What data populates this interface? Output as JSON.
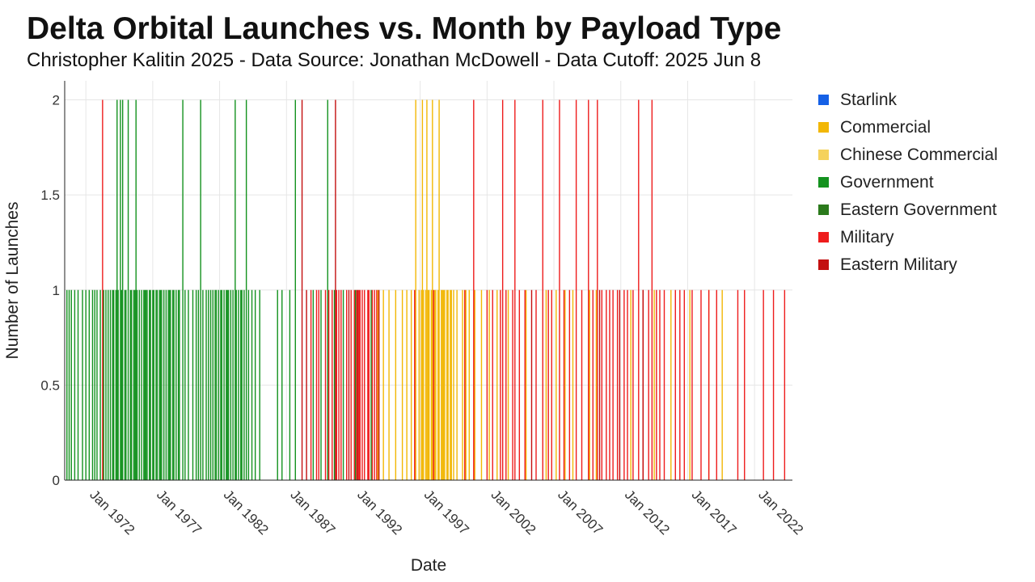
{
  "chart_data": {
    "type": "bar",
    "title": "Delta Orbital Launches vs. Month by Payload Type",
    "subtitle": "Christopher Kalitin 2025 - Data Source: Jonathan McDowell - Data Cutoff: 2025 Jun 8",
    "xlabel": "Date",
    "ylabel": "Number of Launches",
    "x_axis_type": "date",
    "xlim": [
      "1970-06",
      "2024-11"
    ],
    "ylim": [
      0,
      2.1
    ],
    "y_ticks": [
      0,
      0.5,
      1,
      1.5,
      2
    ],
    "y_tick_labels": [
      "0",
      "0.5",
      "1",
      "1.5",
      "2"
    ],
    "x_ticks": [
      "1972-01",
      "1977-01",
      "1982-01",
      "1987-01",
      "1992-01",
      "1997-01",
      "2002-01",
      "2007-01",
      "2012-01",
      "2017-01",
      "2022-01"
    ],
    "x_tick_labels": [
      "Jan 1972",
      "Jan 1977",
      "Jan 1982",
      "Jan 1987",
      "Jan 1992",
      "Jan 1997",
      "Jan 2002",
      "Jan 2007",
      "Jan 2012",
      "Jan 2017",
      "Jan 2022"
    ],
    "grid": true,
    "legend_position": "right",
    "series": [
      {
        "name": "Starlink",
        "color": "#1560e6",
        "points": []
      },
      {
        "name": "Commercial",
        "color": "#f2b705",
        "points": [
          [
            "1993-11",
            1
          ],
          [
            "1994-04",
            1
          ],
          [
            "1994-09",
            1
          ],
          [
            "1995-03",
            1
          ],
          [
            "1995-09",
            1
          ],
          [
            "1996-01",
            1
          ],
          [
            "1996-05",
            1
          ],
          [
            "1996-09",
            2
          ],
          [
            "1996-12",
            1
          ],
          [
            "1997-02",
            1
          ],
          [
            "1997-03",
            2
          ],
          [
            "1997-04",
            1
          ],
          [
            "1997-06",
            1
          ],
          [
            "1997-07",
            2
          ],
          [
            "1997-08",
            1
          ],
          [
            "1997-09",
            1
          ],
          [
            "1997-11",
            1
          ],
          [
            "1997-12",
            2
          ],
          [
            "1998-02",
            1
          ],
          [
            "1998-03",
            1
          ],
          [
            "1998-05",
            1
          ],
          [
            "1998-06",
            2
          ],
          [
            "1998-08",
            1
          ],
          [
            "1998-09",
            1
          ],
          [
            "1998-10",
            1
          ],
          [
            "1998-11",
            1
          ],
          [
            "1999-01",
            1
          ],
          [
            "1999-02",
            1
          ],
          [
            "1999-04",
            1
          ],
          [
            "1999-05",
            1
          ],
          [
            "1999-07",
            1
          ],
          [
            "1999-10",
            1
          ],
          [
            "2000-03",
            1
          ],
          [
            "2000-06",
            1
          ],
          [
            "2000-09",
            1
          ],
          [
            "2001-02",
            1
          ],
          [
            "2001-08",
            1
          ],
          [
            "2002-03",
            1
          ],
          [
            "2002-10",
            1
          ],
          [
            "2003-08",
            1
          ],
          [
            "2004-12",
            1
          ],
          [
            "2006-06",
            1
          ],
          [
            "2007-03",
            1
          ],
          [
            "2007-11",
            1
          ],
          [
            "2008-06",
            1
          ],
          [
            "2009-09",
            1
          ],
          [
            "2010-03",
            1
          ],
          [
            "2012-10",
            1
          ],
          [
            "2014-07",
            1
          ],
          [
            "2015-10",
            1
          ],
          [
            "2017-03",
            1
          ],
          [
            "2018-08",
            1
          ],
          [
            "2019-08",
            1
          ]
        ]
      },
      {
        "name": "Chinese Commercial",
        "color": "#f5d25c",
        "points": []
      },
      {
        "name": "Government",
        "color": "#14921f",
        "points": [
          [
            "1970-08",
            1
          ],
          [
            "1970-10",
            1
          ],
          [
            "1970-12",
            1
          ],
          [
            "1971-03",
            1
          ],
          [
            "1971-06",
            1
          ],
          [
            "1971-10",
            1
          ],
          [
            "1972-01",
            1
          ],
          [
            "1972-04",
            1
          ],
          [
            "1972-07",
            1
          ],
          [
            "1972-09",
            1
          ],
          [
            "1972-11",
            1
          ],
          [
            "1973-02",
            1
          ],
          [
            "1973-05",
            1
          ],
          [
            "1973-07",
            1
          ],
          [
            "1973-09",
            1
          ],
          [
            "1973-11",
            1
          ],
          [
            "1974-01",
            1
          ],
          [
            "1974-02",
            1
          ],
          [
            "1974-04",
            1
          ],
          [
            "1974-05",
            2
          ],
          [
            "1974-06",
            1
          ],
          [
            "1974-08",
            2
          ],
          [
            "1974-09",
            1
          ],
          [
            "1974-10",
            2
          ],
          [
            "1974-12",
            1
          ],
          [
            "1975-01",
            1
          ],
          [
            "1975-03",
            2
          ],
          [
            "1975-05",
            1
          ],
          [
            "1975-06",
            1
          ],
          [
            "1975-08",
            1
          ],
          [
            "1975-09",
            1
          ],
          [
            "1975-10",
            2
          ],
          [
            "1975-11",
            1
          ],
          [
            "1976-01",
            1
          ],
          [
            "1976-03",
            1
          ],
          [
            "1976-05",
            1
          ],
          [
            "1976-06",
            1
          ],
          [
            "1976-07",
            1
          ],
          [
            "1976-08",
            1
          ],
          [
            "1976-10",
            1
          ],
          [
            "1976-11",
            1
          ],
          [
            "1977-01",
            1
          ],
          [
            "1977-02",
            1
          ],
          [
            "1977-04",
            1
          ],
          [
            "1977-05",
            1
          ],
          [
            "1977-07",
            1
          ],
          [
            "1977-08",
            1
          ],
          [
            "1977-09",
            1
          ],
          [
            "1977-11",
            1
          ],
          [
            "1978-01",
            1
          ],
          [
            "1978-03",
            1
          ],
          [
            "1978-04",
            1
          ],
          [
            "1978-05",
            1
          ],
          [
            "1978-07",
            1
          ],
          [
            "1978-08",
            1
          ],
          [
            "1978-10",
            1
          ],
          [
            "1978-12",
            1
          ],
          [
            "1979-01",
            1
          ],
          [
            "1979-04",
            2
          ],
          [
            "1979-06",
            1
          ],
          [
            "1979-09",
            1
          ],
          [
            "1980-01",
            1
          ],
          [
            "1980-04",
            1
          ],
          [
            "1980-06",
            1
          ],
          [
            "1980-08",
            2
          ],
          [
            "1980-10",
            1
          ],
          [
            "1981-01",
            1
          ],
          [
            "1981-03",
            1
          ],
          [
            "1981-05",
            1
          ],
          [
            "1981-07",
            1
          ],
          [
            "1981-09",
            1
          ],
          [
            "1981-10",
            1
          ],
          [
            "1981-12",
            1
          ],
          [
            "1982-02",
            1
          ],
          [
            "1982-03",
            1
          ],
          [
            "1982-05",
            1
          ],
          [
            "1982-07",
            1
          ],
          [
            "1982-08",
            1
          ],
          [
            "1982-09",
            1
          ],
          [
            "1982-11",
            1
          ],
          [
            "1983-01",
            1
          ],
          [
            "1983-03",
            2
          ],
          [
            "1983-04",
            1
          ],
          [
            "1983-06",
            1
          ],
          [
            "1983-08",
            1
          ],
          [
            "1983-09",
            1
          ],
          [
            "1983-11",
            1
          ],
          [
            "1984-01",
            2
          ],
          [
            "1984-03",
            1
          ],
          [
            "1984-06",
            1
          ],
          [
            "1984-09",
            1
          ],
          [
            "1985-01",
            1
          ],
          [
            "1986-05",
            1
          ],
          [
            "1986-09",
            1
          ],
          [
            "1987-04",
            1
          ],
          [
            "1987-09",
            2
          ],
          [
            "1989-01",
            1
          ],
          [
            "1989-08",
            1
          ],
          [
            "1990-02",
            2
          ],
          [
            "1990-08",
            1
          ],
          [
            "1991-04",
            1
          ],
          [
            "1992-03",
            1
          ],
          [
            "1993-05",
            1
          ]
        ]
      },
      {
        "name": "Eastern Government",
        "color": "#2b7a1c",
        "points": []
      },
      {
        "name": "Military",
        "color": "#ee1c1c",
        "points": [
          [
            "1973-04",
            2
          ],
          [
            "1988-11",
            1
          ],
          [
            "1989-04",
            1
          ],
          [
            "1989-06",
            1
          ],
          [
            "1989-12",
            1
          ],
          [
            "1990-03",
            1
          ],
          [
            "1990-06",
            1
          ],
          [
            "1990-10",
            1
          ],
          [
            "1990-12",
            1
          ],
          [
            "1991-02",
            1
          ],
          [
            "1991-07",
            1
          ],
          [
            "1991-11",
            1
          ],
          [
            "1992-02",
            1
          ],
          [
            "1992-04",
            1
          ],
          [
            "1992-06",
            1
          ],
          [
            "1992-07",
            1
          ],
          [
            "1992-09",
            1
          ],
          [
            "1992-11",
            1
          ],
          [
            "1993-02",
            1
          ],
          [
            "1993-03",
            1
          ],
          [
            "1993-06",
            1
          ],
          [
            "1993-08",
            1
          ],
          [
            "1993-10",
            1
          ],
          [
            "1996-08",
            1
          ],
          [
            "1998-01",
            1
          ],
          [
            "2000-05",
            1
          ],
          [
            "2001-01",
            2
          ],
          [
            "2002-01",
            1
          ],
          [
            "2002-06",
            1
          ],
          [
            "2003-01",
            1
          ],
          [
            "2003-03",
            2
          ],
          [
            "2003-06",
            1
          ],
          [
            "2003-12",
            1
          ],
          [
            "2004-02",
            2
          ],
          [
            "2004-06",
            1
          ],
          [
            "2004-11",
            1
          ],
          [
            "2005-09",
            1
          ],
          [
            "2006-03",
            2
          ],
          [
            "2006-08",
            1
          ],
          [
            "2006-11",
            1
          ],
          [
            "2007-06",
            2
          ],
          [
            "2007-10",
            1
          ],
          [
            "2008-03",
            1
          ],
          [
            "2008-09",
            2
          ],
          [
            "2009-02",
            1
          ],
          [
            "2009-08",
            2
          ],
          [
            "2009-12",
            1
          ],
          [
            "2010-04",
            2
          ],
          [
            "2010-08",
            1
          ],
          [
            "2010-12",
            1
          ],
          [
            "2011-03",
            1
          ],
          [
            "2011-06",
            1
          ],
          [
            "2011-10",
            1
          ],
          [
            "2012-04",
            1
          ],
          [
            "2012-07",
            1
          ],
          [
            "2012-12",
            1
          ],
          [
            "2013-05",
            2
          ],
          [
            "2013-09",
            1
          ],
          [
            "2014-02",
            1
          ],
          [
            "2014-05",
            2
          ],
          [
            "2014-09",
            1
          ],
          [
            "2014-12",
            1
          ],
          [
            "2015-04",
            1
          ],
          [
            "2016-02",
            1
          ],
          [
            "2016-06",
            1
          ],
          [
            "2016-10",
            1
          ],
          [
            "2017-05",
            1
          ],
          [
            "2018-01",
            1
          ],
          [
            "2018-08",
            1
          ],
          [
            "2019-03",
            1
          ],
          [
            "2020-10",
            1
          ],
          [
            "2021-04",
            1
          ],
          [
            "2022-09",
            1
          ],
          [
            "2023-06",
            1
          ],
          [
            "2024-04",
            1
          ]
        ]
      },
      {
        "name": "Eastern Military",
        "color": "#c30f0f",
        "points": [
          [
            "1988-03",
            2
          ],
          [
            "1988-07",
            1
          ],
          [
            "1990-09",
            2
          ],
          [
            "1991-09",
            1
          ],
          [
            "1992-05",
            1
          ],
          [
            "1993-12",
            1
          ],
          [
            "2005-05",
            1
          ],
          [
            "2010-06",
            1
          ],
          [
            "2011-12",
            1
          ],
          [
            "2013-09",
            1
          ]
        ]
      }
    ]
  }
}
